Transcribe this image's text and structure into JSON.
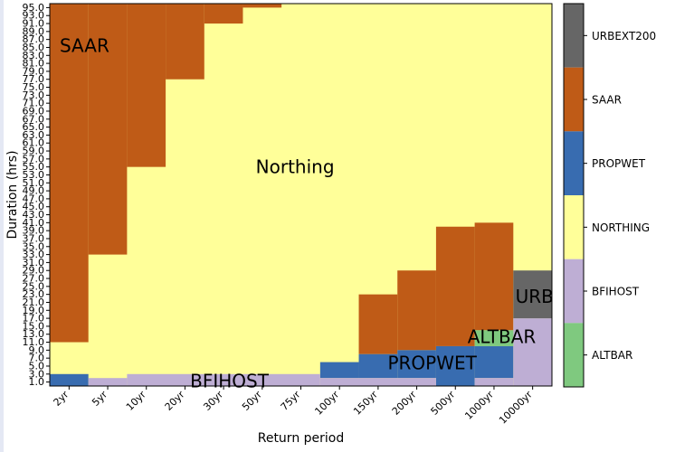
{
  "chart_data": {
    "type": "heatmap",
    "xlabel": "Return period",
    "ylabel": "Duration (hrs)",
    "x_categories": [
      "2yr",
      "5yr",
      "10yr",
      "20yr",
      "30yr",
      "50yr",
      "75yr",
      "100yr",
      "150yr",
      "200yr",
      "500yr",
      "1000yr",
      "10000yr"
    ],
    "y_ticks": [
      "1.0",
      "3.0",
      "5.0",
      "7.0",
      "9.0",
      "11.0",
      "13.0",
      "15.0",
      "17.0",
      "19.0",
      "21.0",
      "23.0",
      "25.0",
      "27.0",
      "29.0",
      "31.0",
      "33.0",
      "35.0",
      "37.0",
      "39.0",
      "41.0",
      "43.0",
      "45.0",
      "47.0",
      "49.0",
      "51.0",
      "53.0",
      "55.0",
      "57.0",
      "59.0",
      "61.0",
      "63.0",
      "65.0",
      "67.0",
      "69.0",
      "71.0",
      "73.0",
      "75.0",
      "77.0",
      "79.0",
      "81.0",
      "83.0",
      "85.0",
      "87.0",
      "89.0",
      "91.0",
      "93.0",
      "95.0"
    ],
    "ylim": [
      0,
      96
    ],
    "background_category": "NORTHING",
    "legend": [
      {
        "label": "URBEXT200",
        "color": "#666666"
      },
      {
        "label": "SAAR",
        "color": "#bf5b17"
      },
      {
        "label": "PROPWET",
        "color": "#386cb0"
      },
      {
        "label": "NORTHING",
        "color": "#ffff99"
      },
      {
        "label": "BFIHOST",
        "color": "#beaed4"
      },
      {
        "label": "ALTBAR",
        "color": "#7fc97f"
      }
    ],
    "regions": [
      {
        "category": "SAAR",
        "x_from": "2yr",
        "x_to": "2yr",
        "y_from": 11,
        "y_to": 96
      },
      {
        "category": "SAAR",
        "x_from": "5yr",
        "x_to": "5yr",
        "y_from": 33,
        "y_to": 96
      },
      {
        "category": "SAAR",
        "x_from": "10yr",
        "x_to": "10yr",
        "y_from": 55,
        "y_to": 96
      },
      {
        "category": "SAAR",
        "x_from": "20yr",
        "x_to": "20yr",
        "y_from": 77,
        "y_to": 96
      },
      {
        "category": "SAAR",
        "x_from": "30yr",
        "x_to": "30yr",
        "y_from": 91,
        "y_to": 96
      },
      {
        "category": "SAAR",
        "x_from": "50yr",
        "x_to": "50yr",
        "y_from": 95,
        "y_to": 96
      },
      {
        "category": "SAAR",
        "x_from": "150yr",
        "x_to": "150yr",
        "y_from": 8,
        "y_to": 23
      },
      {
        "category": "SAAR",
        "x_from": "200yr",
        "x_to": "200yr",
        "y_from": 9,
        "y_to": 29
      },
      {
        "category": "SAAR",
        "x_from": "500yr",
        "x_to": "500yr",
        "y_from": 10,
        "y_to": 40
      },
      {
        "category": "SAAR",
        "x_from": "1000yr",
        "x_to": "1000yr",
        "y_from": 14,
        "y_to": 41
      },
      {
        "category": "PROPWET",
        "x_from": "2yr",
        "x_to": "2yr",
        "y_from": 0,
        "y_to": 3
      },
      {
        "category": "PROPWET",
        "x_from": "100yr",
        "x_to": "100yr",
        "y_from": 2,
        "y_to": 6
      },
      {
        "category": "PROPWET",
        "x_from": "150yr",
        "x_to": "150yr",
        "y_from": 2,
        "y_to": 8
      },
      {
        "category": "PROPWET",
        "x_from": "200yr",
        "x_to": "200yr",
        "y_from": 2,
        "y_to": 9
      },
      {
        "category": "PROPWET",
        "x_from": "500yr",
        "x_to": "500yr",
        "y_from": 0,
        "y_to": 10
      },
      {
        "category": "PROPWET",
        "x_from": "1000yr",
        "x_to": "1000yr",
        "y_from": 2,
        "y_to": 10
      },
      {
        "category": "BFIHOST",
        "x_from": "5yr",
        "x_to": "5yr",
        "y_from": 0,
        "y_to": 2
      },
      {
        "category": "BFIHOST",
        "x_from": "10yr",
        "x_to": "75yr",
        "y_from": 0,
        "y_to": 3
      },
      {
        "category": "BFIHOST",
        "x_from": "100yr",
        "x_to": "200yr",
        "y_from": 0,
        "y_to": 2
      },
      {
        "category": "BFIHOST",
        "x_from": "1000yr",
        "x_to": "1000yr",
        "y_from": 0,
        "y_to": 2
      },
      {
        "category": "BFIHOST",
        "x_from": "10000yr",
        "x_to": "10000yr",
        "y_from": 0,
        "y_to": 17
      },
      {
        "category": "ALTBAR",
        "x_from": "1000yr",
        "x_to": "1000yr",
        "y_from": 10,
        "y_to": 14
      },
      {
        "category": "URBEXT200",
        "x_from": "10000yr",
        "x_to": "10000yr",
        "y_from": 17,
        "y_to": 29
      }
    ],
    "annotations": [
      {
        "text": "SAAR",
        "x": 0.9,
        "y": 85.5,
        "size": 20
      },
      {
        "text": "Northing",
        "x": 6.35,
        "y": 55,
        "size": 20
      },
      {
        "text": "BFIHOST",
        "x": 4.65,
        "y": 1.3,
        "size": 20
      },
      {
        "text": "PROPWET",
        "x": 9.9,
        "y": 5.8,
        "size": 20
      },
      {
        "text": "ALTBAR",
        "x": 11.7,
        "y": 12.4,
        "size": 20
      },
      {
        "text": "URB",
        "x": 12.55,
        "y": 22.5,
        "size": 20
      }
    ]
  }
}
